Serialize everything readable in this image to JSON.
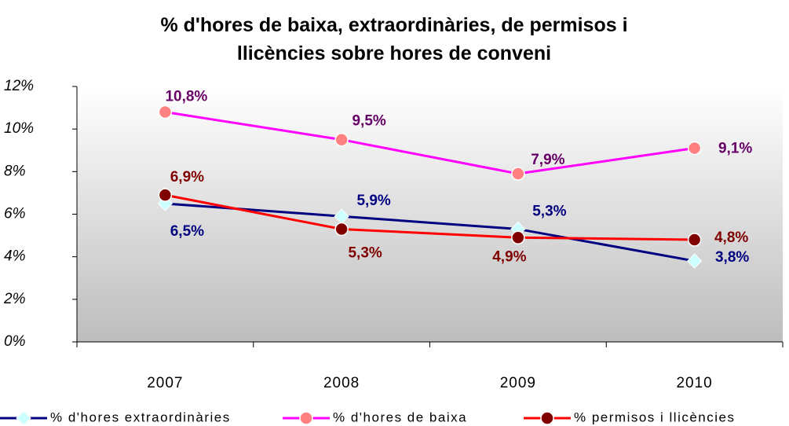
{
  "chart_data": {
    "type": "line",
    "title": "% d'hores de baixa, extraordinàries, de permisos i llicències sobre hores de conveni",
    "categories": [
      "2007",
      "2008",
      "2009",
      "2010"
    ],
    "series": [
      {
        "name": "% d'hores extraordinàries",
        "color": "#000080",
        "marker": "diamond",
        "marker_color": "#ccffff",
        "label_color": "#000080",
        "values": [
          6.5,
          5.9,
          5.3,
          3.8
        ],
        "value_labels": [
          "6,5%",
          "5,9%",
          "5,3%",
          "3,8%"
        ]
      },
      {
        "name": "% d'hores de baixa",
        "color": "#ff00ff",
        "marker": "circle",
        "marker_color": "#ff8080",
        "label_color": "#660066",
        "values": [
          10.8,
          9.5,
          7.9,
          9.1
        ],
        "value_labels": [
          "10,8%",
          "9,5%",
          "7,9%",
          "9,1%"
        ]
      },
      {
        "name": "% permisos i llicències",
        "color": "#ff0000",
        "marker": "circle",
        "marker_color": "#800000",
        "label_color": "#800000",
        "values": [
          6.9,
          5.3,
          4.9,
          4.8
        ],
        "value_labels": [
          "6,9%",
          "5,3%",
          "4,9%",
          "4,8%"
        ]
      }
    ],
    "ylim": [
      0,
      12
    ],
    "yticks": [
      {
        "value": 0,
        "label": "0%"
      },
      {
        "value": 2,
        "label": "2%"
      },
      {
        "value": 4,
        "label": "4%"
      },
      {
        "value": 6,
        "label": "6%"
      },
      {
        "value": 8,
        "label": "8%"
      },
      {
        "value": 10,
        "label": "10%"
      },
      {
        "value": 12,
        "label": "12%"
      }
    ],
    "grid": false,
    "legend": "bottom"
  }
}
